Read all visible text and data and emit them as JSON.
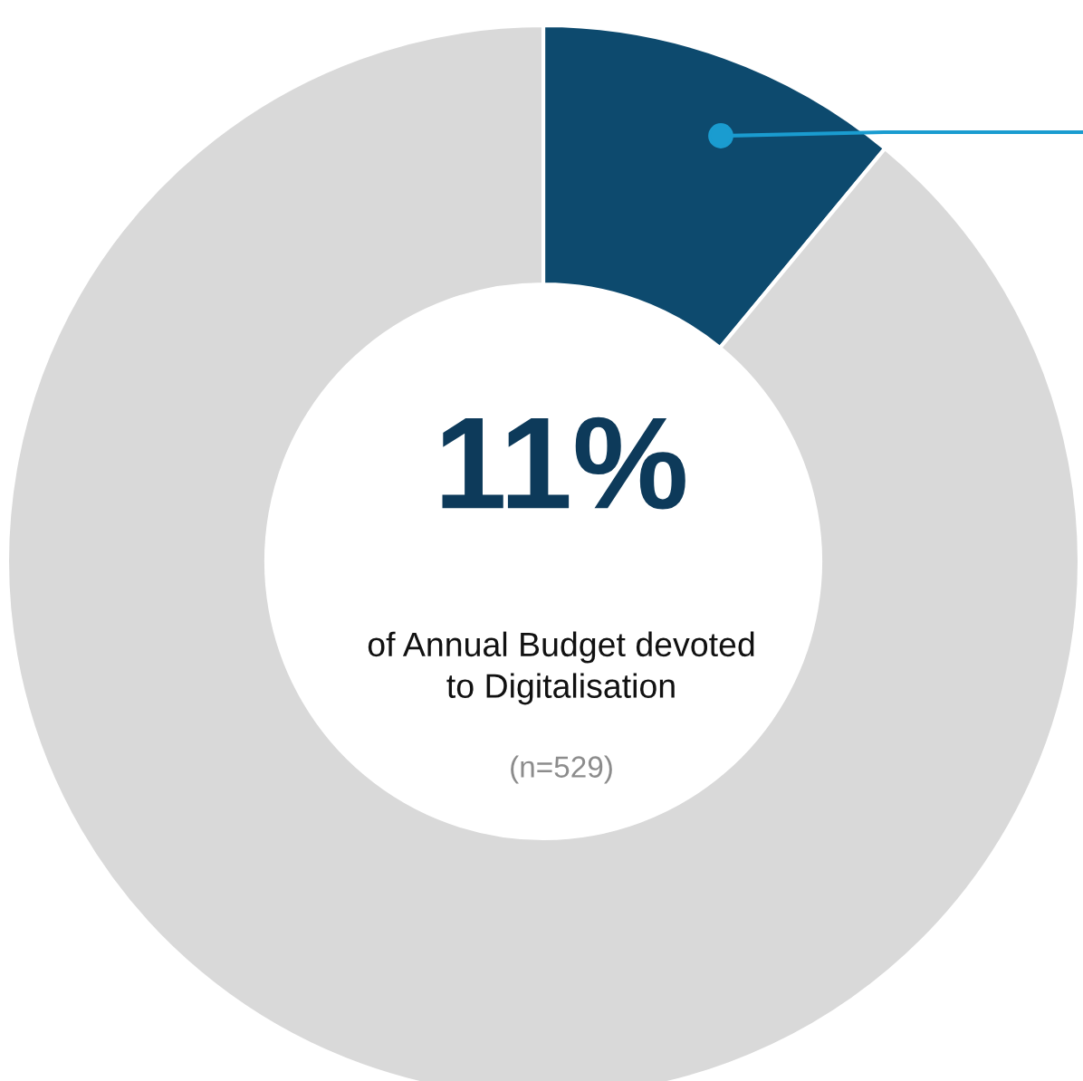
{
  "chart_data": {
    "type": "donut",
    "categories": [
      null,
      null
    ],
    "values": [
      11,
      89
    ],
    "colors": [
      "#0d4a6e",
      "#d9d9d9"
    ],
    "annotations": [
      "11%",
      "of Annual Budget devoted\nto Digitalisation",
      "(n=529)"
    ]
  }
}
